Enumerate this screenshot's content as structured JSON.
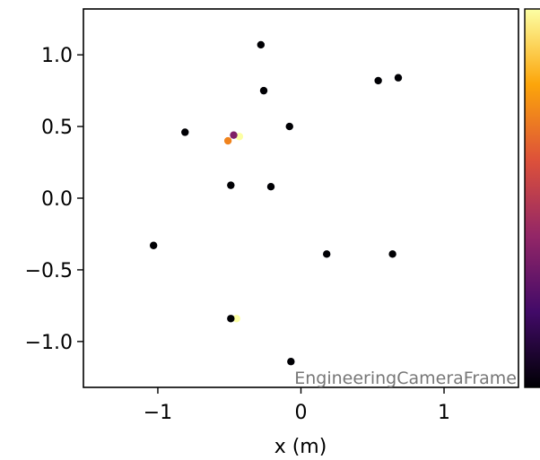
{
  "chart_data": {
    "type": "scatter",
    "title": "",
    "xlabel": "x  (m)",
    "ylabel": "",
    "xlim": [
      -1.52,
      1.52
    ],
    "ylim": [
      -1.32,
      1.32
    ],
    "x_ticks": [
      -1,
      0,
      1
    ],
    "x_tick_labels": [
      "−1",
      "0",
      "1"
    ],
    "y_ticks": [
      1.0,
      0.5,
      0.0,
      -0.5,
      -1.0
    ],
    "y_tick_labels": [
      "1.0",
      "0.5",
      "0.0",
      "−0.5",
      "−1.0"
    ],
    "grid": false,
    "annotation": "EngineeringCameraFrame",
    "colormap": [
      "#000004",
      "#420a68",
      "#932667",
      "#dd513a",
      "#fca50a",
      "#fcffa4"
    ],
    "colorbar": true,
    "points": [
      {
        "x": -0.28,
        "y": 1.07,
        "c": 0.0
      },
      {
        "x": -0.26,
        "y": 0.75,
        "c": 0.0
      },
      {
        "x": 0.54,
        "y": 0.82,
        "c": 0.0
      },
      {
        "x": 0.68,
        "y": 0.84,
        "c": 0.0
      },
      {
        "x": -0.08,
        "y": 0.5,
        "c": 0.0
      },
      {
        "x": -0.81,
        "y": 0.46,
        "c": 0.0
      },
      {
        "x": -0.43,
        "y": 0.43,
        "c": 1.0
      },
      {
        "x": -0.47,
        "y": 0.44,
        "c": 0.35
      },
      {
        "x": -0.51,
        "y": 0.4,
        "c": 0.72
      },
      {
        "x": -0.49,
        "y": 0.09,
        "c": 0.0
      },
      {
        "x": -0.21,
        "y": 0.08,
        "c": 0.0
      },
      {
        "x": -1.03,
        "y": -0.33,
        "c": 0.0
      },
      {
        "x": 0.18,
        "y": -0.39,
        "c": 0.0
      },
      {
        "x": 0.64,
        "y": -0.39,
        "c": 0.0
      },
      {
        "x": -0.45,
        "y": -0.84,
        "c": 1.0
      },
      {
        "x": -0.49,
        "y": -0.84,
        "c": 0.0
      },
      {
        "x": -0.07,
        "y": -1.14,
        "c": 0.0
      }
    ]
  }
}
